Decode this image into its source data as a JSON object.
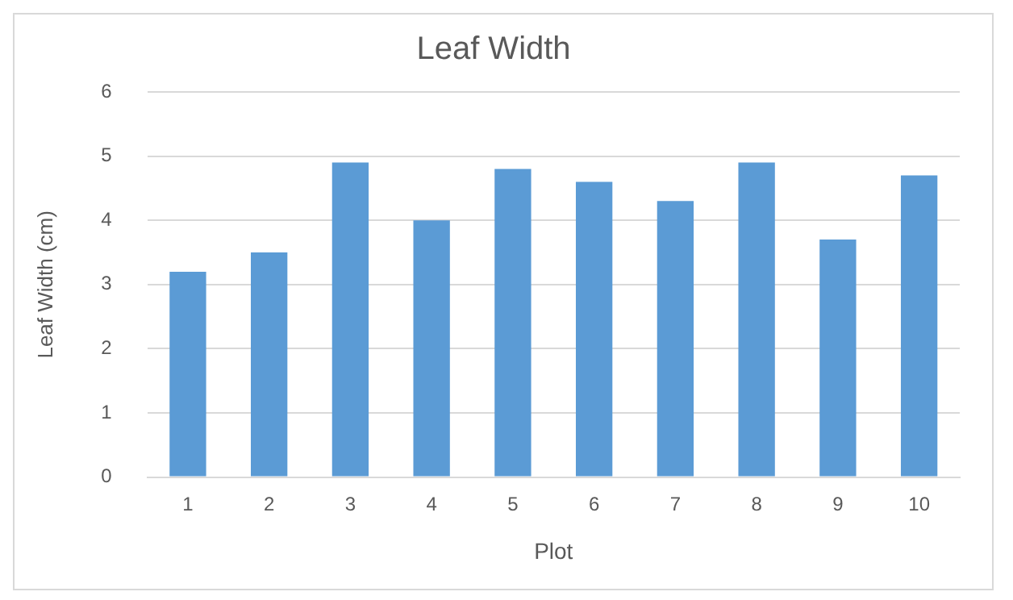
{
  "chart_data": {
    "type": "bar",
    "title": "Leaf Width",
    "xlabel": "Plot",
    "ylabel": "Leaf Width (cm)",
    "categories": [
      "1",
      "2",
      "3",
      "4",
      "5",
      "6",
      "7",
      "8",
      "9",
      "10"
    ],
    "values": [
      3.2,
      3.5,
      4.9,
      4.0,
      4.8,
      4.6,
      4.3,
      4.9,
      3.7,
      4.7
    ],
    "color": "#5b9bd5",
    "ylim": [
      0,
      6
    ],
    "yticks": [
      0,
      1,
      2,
      3,
      4,
      5,
      6
    ],
    "grid": "y"
  }
}
